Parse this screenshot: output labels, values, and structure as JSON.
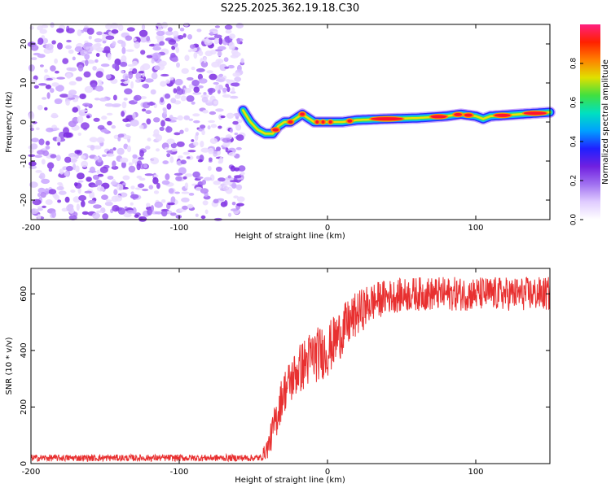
{
  "page_title": "S225.2025.362.19.18.C30",
  "chart_data": [
    {
      "type": "heatmap",
      "title": "S225.2025.362.19.18.C30",
      "xlabel": "Height of straight line (km)",
      "ylabel": "Frequency (Hz)",
      "xlim": [
        -200,
        150
      ],
      "ylim": [
        -25,
        25
      ],
      "x_ticks": [
        -200,
        -100,
        0,
        100
      ],
      "y_ticks": [
        -20,
        -10,
        0,
        10,
        20
      ],
      "noise_region_x": [
        -200,
        -57
      ],
      "ridge": [
        {
          "x": -57,
          "y": 3
        },
        {
          "x": -52,
          "y": 0
        },
        {
          "x": -47,
          "y": -2
        },
        {
          "x": -42,
          "y": -3
        },
        {
          "x": -37,
          "y": -3
        },
        {
          "x": -33,
          "y": -1
        },
        {
          "x": -29,
          "y": 0
        },
        {
          "x": -25,
          "y": 0
        },
        {
          "x": -21,
          "y": 1
        },
        {
          "x": -17,
          "y": 2
        },
        {
          "x": -13,
          "y": 1
        },
        {
          "x": -9,
          "y": 0
        },
        {
          "x": -5,
          "y": 0
        },
        {
          "x": 0,
          "y": 0
        },
        {
          "x": 10,
          "y": 0
        },
        {
          "x": 20,
          "y": 0.5
        },
        {
          "x": 40,
          "y": 0.8
        },
        {
          "x": 60,
          "y": 1
        },
        {
          "x": 80,
          "y": 1.5
        },
        {
          "x": 90,
          "y": 2
        },
        {
          "x": 100,
          "y": 1.5
        },
        {
          "x": 105,
          "y": 0.8
        },
        {
          "x": 110,
          "y": 1.5
        },
        {
          "x": 130,
          "y": 2
        },
        {
          "x": 150,
          "y": 2.5
        }
      ],
      "colorbar": {
        "label": "Normalized spectral amplitude",
        "range": [
          0,
          1
        ],
        "ticks": [
          "0.0",
          "0.2",
          "0.4",
          "0.6",
          "0.8"
        ],
        "tick_values": [
          0,
          0.2,
          0.4,
          0.6,
          0.8
        ],
        "colors": [
          "#ffffff",
          "#e0ccff",
          "#a070f0",
          "#7020e0",
          "#2020ff",
          "#00a0ff",
          "#00e0c0",
          "#40e040",
          "#e0e000",
          "#ff8000",
          "#ff2000",
          "#ff2080"
        ]
      }
    },
    {
      "type": "line",
      "xlabel": "Height of straight line (km)",
      "ylabel": "SNR (10 * v/v)",
      "xlim": [
        -200,
        150
      ],
      "ylim": [
        0,
        690
      ],
      "x_ticks": [
        -200,
        -100,
        0,
        100
      ],
      "y_ticks": [
        0,
        200,
        400,
        600
      ],
      "color": "#e83030",
      "envelope": [
        {
          "x": -200,
          "y": 20
        },
        {
          "x": -45,
          "y": 20
        },
        {
          "x": -40,
          "y": 60
        },
        {
          "x": -35,
          "y": 150
        },
        {
          "x": -30,
          "y": 250
        },
        {
          "x": -20,
          "y": 330
        },
        {
          "x": -10,
          "y": 380
        },
        {
          "x": 0,
          "y": 400
        },
        {
          "x": 10,
          "y": 470
        },
        {
          "x": 20,
          "y": 530
        },
        {
          "x": 30,
          "y": 570
        },
        {
          "x": 40,
          "y": 590
        },
        {
          "x": 60,
          "y": 600
        },
        {
          "x": 100,
          "y": 600
        },
        {
          "x": 150,
          "y": 600
        }
      ],
      "noise_amplitude": [
        {
          "x": -200,
          "y": 12
        },
        {
          "x": -45,
          "y": 12
        },
        {
          "x": -35,
          "y": 70
        },
        {
          "x": -10,
          "y": 100
        },
        {
          "x": 10,
          "y": 90
        },
        {
          "x": 40,
          "y": 60
        },
        {
          "x": 150,
          "y": 60
        }
      ]
    }
  ]
}
